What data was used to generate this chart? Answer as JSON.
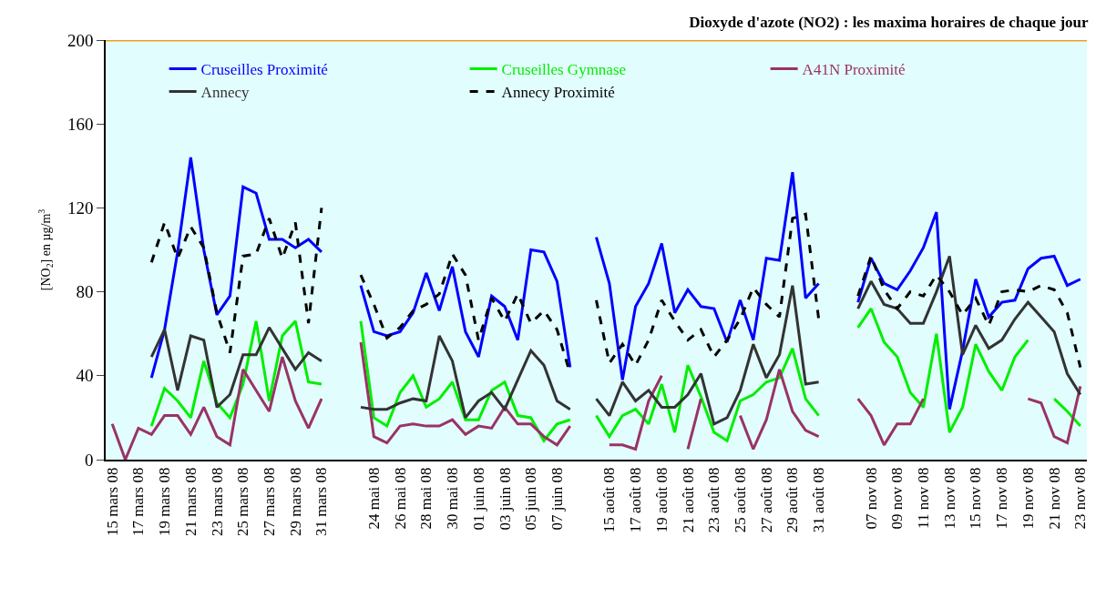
{
  "chart_data": {
    "type": "line",
    "title": "Dioxyde d'azote (NO2) : les maxima horaires de chaque jour",
    "ylabel": "[NO$_{2}$] en µg/m$^{3}$",
    "categories": [
      "15 mars 08",
      null,
      "17 mars 08",
      null,
      "19 mars 08",
      null,
      "21 mars 08",
      null,
      "23 mars 08",
      null,
      "25 mars 08",
      null,
      "27 mars 08",
      null,
      "29 mars 08",
      null,
      "31 mars 08",
      null,
      null,
      null,
      "24 mai 08",
      null,
      "26 mai 08",
      null,
      "28 mai 08",
      null,
      "30 mai 08",
      null,
      "01 juin 08",
      null,
      "03 juin 08",
      null,
      "05 juin 08",
      null,
      "07 juin 08",
      null,
      null,
      null,
      "15 août 08",
      null,
      "17 août 08",
      null,
      "19 août 08",
      null,
      "21 août 08",
      null,
      "23 août 08",
      null,
      "25 août 08",
      null,
      "27 août 08",
      null,
      "29 août 08",
      null,
      "31 août 08",
      null,
      null,
      null,
      "07 nov 08",
      null,
      "09 nov 08",
      null,
      "11 nov 08",
      null,
      "13 nov 08",
      null,
      "15 nov 08",
      null,
      "17 nov 08",
      null,
      "19 nov 08",
      null,
      "21 nov 08",
      null,
      "23 nov 08"
    ],
    "series": [
      {
        "name": "Cruseilles Proximité",
        "color": "#0000ff",
        "values": [
          null,
          null,
          null,
          39,
          62,
          99,
          144,
          100,
          69,
          78,
          130,
          127,
          105,
          105,
          101,
          105,
          99,
          null,
          null,
          83,
          61,
          59,
          61,
          70,
          89,
          71,
          92,
          61,
          49,
          78,
          73,
          57,
          100,
          99,
          85,
          44,
          null,
          106,
          84,
          38,
          73,
          84,
          103,
          70,
          81,
          73,
          72,
          56,
          76,
          57,
          96,
          95,
          137,
          77,
          84,
          null,
          null,
          75,
          96,
          84,
          81,
          90,
          101,
          118,
          24,
          52,
          86,
          68,
          75,
          76,
          91,
          96,
          97,
          83,
          86
        ]
      },
      {
        "name": "Cruseilles Gymnase",
        "color": "#00ee00",
        "values": [
          null,
          null,
          null,
          16,
          34,
          28,
          20,
          47,
          27,
          20,
          36,
          66,
          28,
          59,
          66,
          37,
          36,
          null,
          null,
          66,
          20,
          16,
          32,
          40,
          25,
          29,
          37,
          19,
          19,
          33,
          37,
          21,
          20,
          9,
          17,
          19,
          null,
          21,
          11,
          21,
          24,
          17,
          36,
          13,
          45,
          30,
          13,
          9,
          28,
          31,
          37,
          39,
          53,
          29,
          21,
          null,
          null,
          63,
          72,
          56,
          49,
          32,
          25,
          60,
          13,
          25,
          55,
          42,
          33,
          49,
          57,
          null,
          29,
          23,
          16
        ]
      },
      {
        "name": "A41N Proximité",
        "color": "#993366",
        "values": [
          17,
          0,
          15,
          12,
          21,
          21,
          12,
          25,
          11,
          7,
          43,
          33,
          23,
          49,
          28,
          15,
          29,
          null,
          null,
          56,
          11,
          8,
          16,
          17,
          16,
          16,
          19,
          12,
          16,
          15,
          25,
          17,
          17,
          11,
          7,
          16,
          null,
          null,
          7,
          7,
          5,
          28,
          40,
          null,
          5,
          29,
          null,
          null,
          21,
          5,
          19,
          43,
          23,
          14,
          11,
          null,
          null,
          29,
          21,
          7,
          17,
          17,
          29,
          null,
          null,
          null,
          null,
          null,
          null,
          null,
          29,
          27,
          11,
          8,
          35
        ]
      },
      {
        "name": "Annecy",
        "color": "#333333",
        "values": [
          null,
          null,
          null,
          49,
          62,
          33,
          59,
          57,
          25,
          31,
          50,
          50,
          63,
          53,
          43,
          51,
          47,
          null,
          null,
          25,
          24,
          24,
          27,
          29,
          28,
          59,
          47,
          20,
          28,
          32,
          24,
          38,
          52,
          45,
          28,
          24,
          null,
          29,
          21,
          37,
          28,
          33,
          25,
          25,
          31,
          41,
          17,
          20,
          33,
          55,
          39,
          50,
          83,
          36,
          37,
          null,
          null,
          72,
          85,
          74,
          72,
          65,
          65,
          80,
          97,
          50,
          64,
          53,
          57,
          67,
          75,
          68,
          61,
          41,
          31
        ]
      },
      {
        "name": "Annecy Proximité",
        "color": "#000000",
        "line_style": "dashed",
        "values": [
          null,
          null,
          null,
          94,
          113,
          96,
          111,
          101,
          70,
          51,
          97,
          98,
          115,
          96,
          113,
          65,
          120,
          null,
          null,
          88,
          74,
          58,
          63,
          71,
          74,
          79,
          98,
          88,
          57,
          77,
          66,
          79,
          65,
          71,
          62,
          41,
          null,
          76,
          46,
          55,
          45,
          57,
          76,
          66,
          57,
          62,
          49,
          57,
          67,
          82,
          74,
          68,
          115,
          117,
          67,
          null,
          null,
          78,
          97,
          81,
          72,
          80,
          78,
          88,
          80,
          69,
          77,
          64,
          80,
          81,
          80,
          83,
          81,
          70,
          44
        ]
      }
    ],
    "ylim": [
      0,
      200
    ],
    "yticks": [
      0,
      40,
      80,
      120,
      160,
      200
    ],
    "ref_lines": [
      {
        "axis": "y",
        "value": 200,
        "color": "#f39c1e"
      }
    ],
    "grid": false,
    "legend": "top left",
    "marker": "none"
  }
}
